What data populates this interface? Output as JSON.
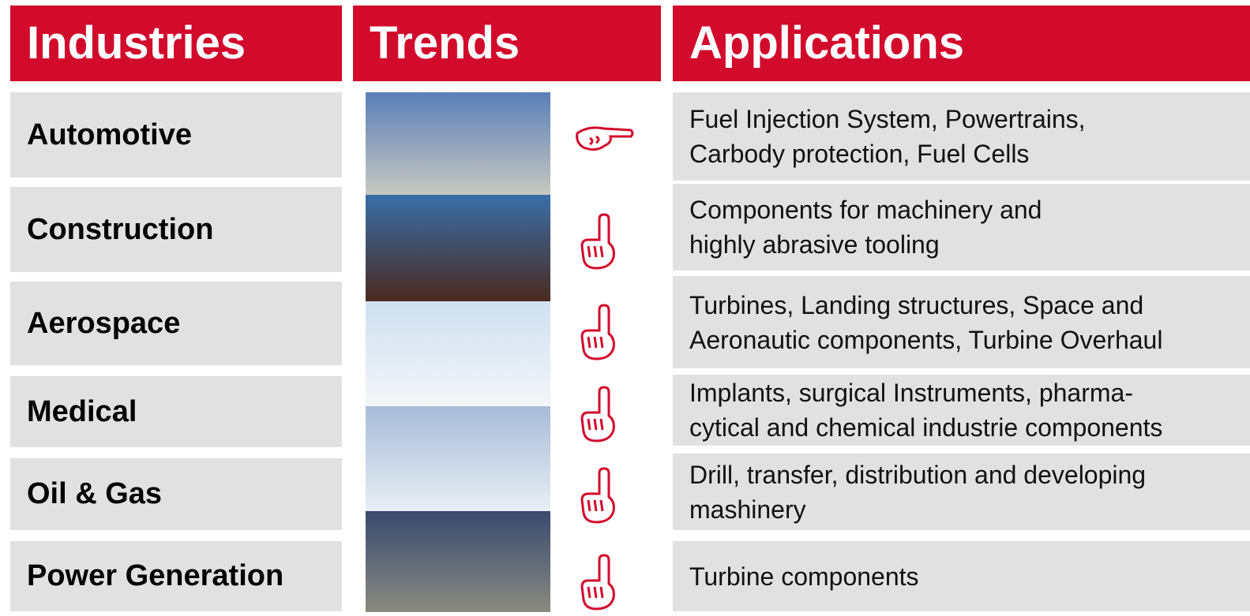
{
  "header": {
    "industries": "Industries",
    "trends": "Trends",
    "applications": "Applications"
  },
  "rows": [
    {
      "industry": "Automotive",
      "application": [
        "Fuel Injection System, Powertrains,",
        "Carbody protection, Fuel Cells"
      ]
    },
    {
      "industry": "Construction",
      "application": [
        "Components for machinery and",
        "highly abrasive tooling"
      ]
    },
    {
      "industry": "Aerospace",
      "application": [
        "Turbines, Landing structures, Space and",
        "Aeronautic components, Turbine Overhaul"
      ]
    },
    {
      "industry": "Medical",
      "application": [
        "Implants, surgical Instruments,  pharma-",
        "cytical and chemical industrie components"
      ]
    },
    {
      "industry": "Oil & Gas",
      "application": [
        "Drill, transfer, distribution and developing",
        "mashinery"
      ]
    },
    {
      "industry": "Power Generation",
      "application": [
        "Turbine components"
      ]
    }
  ]
}
